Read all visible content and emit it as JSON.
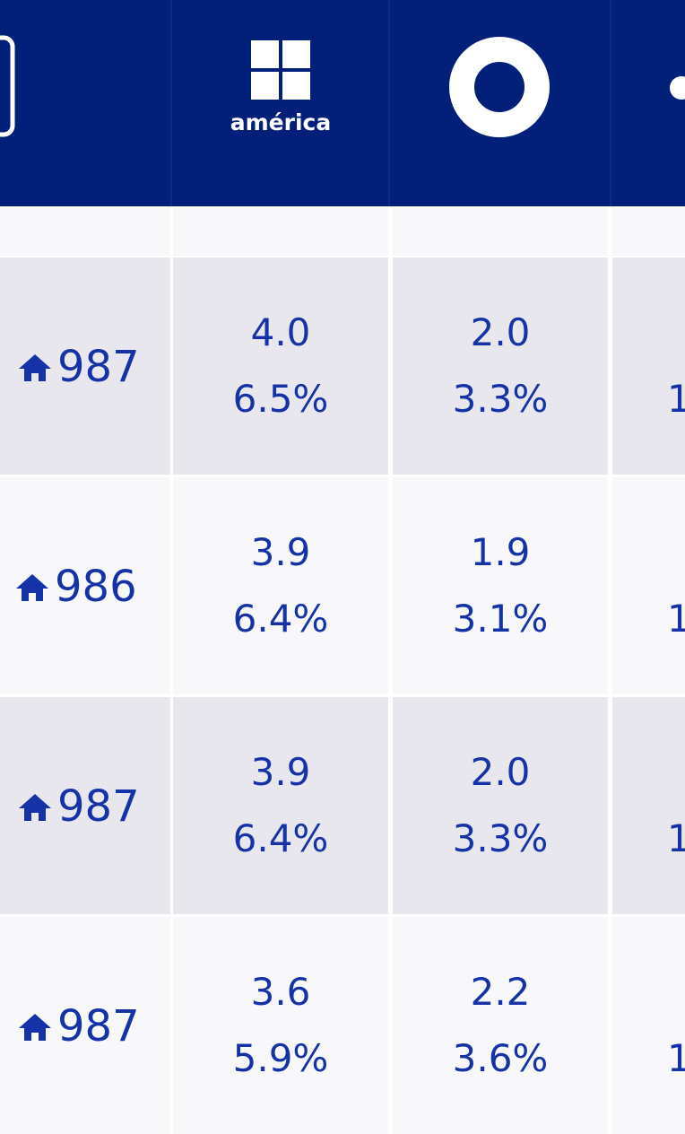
{
  "header": {
    "logo_text": "américa"
  },
  "rows": [
    {
      "count": "987",
      "cells": [
        [
          "4.0",
          "6.5%"
        ],
        [
          "2.0",
          "3.3%"
        ]
      ],
      "partial": "1"
    },
    {
      "count": "986",
      "cells": [
        [
          "3.9",
          "6.4%"
        ],
        [
          "1.9",
          "3.1%"
        ]
      ],
      "partial": "1"
    },
    {
      "count": "987",
      "cells": [
        [
          "3.9",
          "6.4%"
        ],
        [
          "2.0",
          "3.3%"
        ]
      ],
      "partial": "1"
    },
    {
      "count": "987",
      "cells": [
        [
          "3.6",
          "5.9%"
        ],
        [
          "2.2",
          "3.6%"
        ]
      ],
      "partial": "1"
    }
  ]
}
